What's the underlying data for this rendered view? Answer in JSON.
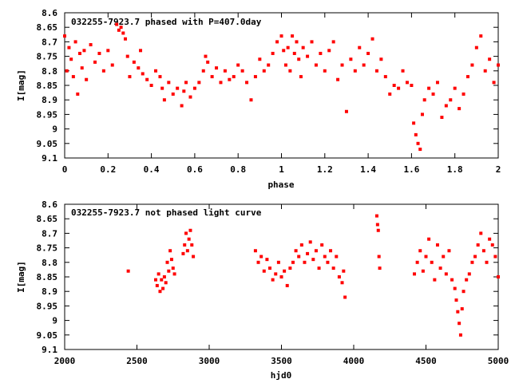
{
  "colors": {
    "points": "#ff0000",
    "axes": "#000000",
    "background": "#ffffff"
  },
  "chart_data": [
    {
      "type": "scatter",
      "title": "032255-7923.7 phased with P=407.0day",
      "xlabel": "phase",
      "ylabel": "I[mag]",
      "xlim": [
        0,
        2
      ],
      "ylim": [
        9.1,
        8.6
      ],
      "y_inverted": true,
      "grid": false,
      "xticks": [
        0,
        0.2,
        0.4,
        0.6,
        0.8,
        1,
        1.2,
        1.4,
        1.6,
        1.8,
        2
      ],
      "xtick_labels": [
        "0",
        "0.2",
        "0.4",
        "0.6",
        "0.8",
        "1",
        "1.2",
        "1.4",
        "1.6",
        "1.8",
        "2"
      ],
      "yticks": [
        8.6,
        8.65,
        8.7,
        8.75,
        8.8,
        8.85,
        8.9,
        8.95,
        9,
        9.05,
        9.1
      ],
      "ytick_labels": [
        "8.6",
        "8.65",
        "8.7",
        "8.75",
        "8.8",
        "8.85",
        "8.9",
        "8.95",
        "9",
        "9.05",
        "9.1"
      ],
      "series": [
        {
          "x": [
            0.0,
            0.01,
            0.02,
            0.03,
            0.04,
            0.05,
            0.06,
            0.07,
            0.08,
            0.09,
            0.1,
            0.12,
            0.14,
            0.16,
            0.18,
            0.2,
            0.22,
            0.24,
            0.25,
            0.26,
            0.27,
            0.28,
            0.29,
            0.3,
            0.32,
            0.34,
            0.35,
            0.36,
            0.38,
            0.4,
            0.42,
            0.44,
            0.45,
            0.46,
            0.48,
            0.5,
            0.52,
            0.54,
            0.55,
            0.56,
            0.58,
            0.6,
            0.62,
            0.64,
            0.65,
            0.66,
            0.68,
            0.7,
            0.72,
            0.74,
            0.76,
            0.78,
            0.8,
            0.82,
            0.84,
            0.86,
            0.88,
            0.9,
            0.92,
            0.94,
            0.96,
            0.98,
            1.0,
            1.01,
            1.02,
            1.03,
            1.04,
            1.05,
            1.06,
            1.07,
            1.08,
            1.09,
            1.1,
            1.12,
            1.14,
            1.16,
            1.18,
            1.2,
            1.22,
            1.24,
            1.26,
            1.28,
            1.3,
            1.32,
            1.34,
            1.36,
            1.38,
            1.4,
            1.42,
            1.44,
            1.46,
            1.48,
            1.5,
            1.52,
            1.54,
            1.56,
            1.58,
            1.6,
            1.61,
            1.62,
            1.63,
            1.64,
            1.65,
            1.66,
            1.68,
            1.7,
            1.72,
            1.74,
            1.76,
            1.78,
            1.8,
            1.82,
            1.84,
            1.86,
            1.88,
            1.9,
            1.92,
            1.94,
            1.96,
            1.98,
            2.0
          ],
          "y": [
            8.68,
            8.8,
            8.72,
            8.76,
            8.82,
            8.7,
            8.88,
            8.74,
            8.79,
            8.73,
            8.83,
            8.71,
            8.77,
            8.74,
            8.8,
            8.73,
            8.78,
            8.64,
            8.66,
            8.65,
            8.67,
            8.69,
            8.75,
            8.82,
            8.77,
            8.79,
            8.73,
            8.81,
            8.83,
            8.85,
            8.8,
            8.82,
            8.86,
            8.9,
            8.84,
            8.88,
            8.86,
            8.92,
            8.87,
            8.84,
            8.89,
            8.86,
            8.84,
            8.8,
            8.75,
            8.77,
            8.82,
            8.79,
            8.84,
            8.8,
            8.83,
            8.82,
            8.78,
            8.8,
            8.84,
            8.9,
            8.82,
            8.76,
            8.8,
            8.78,
            8.74,
            8.7,
            8.68,
            8.73,
            8.78,
            8.72,
            8.8,
            8.68,
            8.74,
            8.7,
            8.76,
            8.82,
            8.72,
            8.75,
            8.7,
            8.78,
            8.74,
            8.8,
            8.73,
            8.7,
            8.83,
            8.78,
            8.94,
            8.76,
            8.8,
            8.72,
            8.78,
            8.74,
            8.69,
            8.8,
            8.76,
            8.82,
            8.88,
            8.85,
            8.86,
            8.8,
            8.84,
            8.85,
            8.98,
            9.02,
            9.05,
            9.07,
            8.95,
            8.9,
            8.86,
            8.88,
            8.84,
            8.96,
            8.92,
            8.9,
            8.86,
            8.93,
            8.88,
            8.82,
            8.78,
            8.72,
            8.68,
            8.8,
            8.76,
            8.84,
            8.78
          ]
        }
      ]
    },
    {
      "type": "scatter",
      "title": "032255-7923.7 not phased light curve",
      "xlabel": "hjd0",
      "ylabel": "I[mag]",
      "xlim": [
        2000,
        5000
      ],
      "ylim": [
        9.1,
        8.6
      ],
      "y_inverted": true,
      "grid": false,
      "xticks": [
        2000,
        2500,
        3000,
        3500,
        4000,
        4500,
        5000
      ],
      "xtick_labels": [
        "2000",
        "2500",
        "3000",
        "3500",
        "4000",
        "4500",
        "5000"
      ],
      "yticks": [
        8.6,
        8.65,
        8.7,
        8.75,
        8.8,
        8.85,
        8.9,
        8.95,
        9,
        9.05,
        9.1
      ],
      "ytick_labels": [
        "8.6",
        "8.65",
        "8.7",
        "8.75",
        "8.8",
        "8.85",
        "8.9",
        "8.95",
        "9",
        "9.05",
        "9.1"
      ],
      "series": [
        {
          "x": [
            2440,
            2630,
            2640,
            2650,
            2660,
            2670,
            2680,
            2690,
            2700,
            2710,
            2720,
            2730,
            2740,
            2750,
            2760,
            2820,
            2830,
            2840,
            2850,
            2860,
            2870,
            2880,
            2890,
            3320,
            3340,
            3360,
            3380,
            3400,
            3420,
            3440,
            3460,
            3480,
            3500,
            3520,
            3540,
            3560,
            3580,
            3600,
            3620,
            3640,
            3660,
            3680,
            3700,
            3720,
            3740,
            3760,
            3780,
            3800,
            3820,
            3840,
            3860,
            3880,
            3900,
            3920,
            3930,
            3940,
            4160,
            4165,
            4170,
            4175,
            4180,
            4420,
            4440,
            4460,
            4480,
            4500,
            4520,
            4540,
            4560,
            4580,
            4600,
            4620,
            4640,
            4660,
            4680,
            4700,
            4710,
            4720,
            4730,
            4740,
            4750,
            4760,
            4780,
            4800,
            4820,
            4840,
            4860,
            4880,
            4900,
            4920,
            4940,
            4960,
            4980,
            5000
          ],
          "y": [
            8.83,
            8.86,
            8.88,
            8.84,
            8.9,
            8.86,
            8.89,
            8.85,
            8.87,
            8.8,
            8.83,
            8.76,
            8.79,
            8.82,
            8.84,
            8.77,
            8.74,
            8.7,
            8.76,
            8.72,
            8.69,
            8.74,
            8.78,
            8.76,
            8.8,
            8.78,
            8.83,
            8.79,
            8.82,
            8.86,
            8.84,
            8.8,
            8.85,
            8.83,
            8.88,
            8.82,
            8.8,
            8.76,
            8.78,
            8.74,
            8.8,
            8.77,
            8.73,
            8.79,
            8.76,
            8.82,
            8.74,
            8.78,
            8.8,
            8.76,
            8.82,
            8.78,
            8.85,
            8.87,
            8.83,
            8.92,
            8.64,
            8.67,
            8.69,
            8.78,
            8.82,
            8.84,
            8.8,
            8.76,
            8.83,
            8.78,
            8.72,
            8.8,
            8.86,
            8.74,
            8.82,
            8.78,
            8.84,
            8.76,
            8.86,
            8.89,
            8.93,
            8.97,
            9.01,
            9.05,
            8.96,
            8.9,
            8.86,
            8.84,
            8.8,
            8.78,
            8.74,
            8.7,
            8.76,
            8.8,
            8.72,
            8.74,
            8.78,
            8.85
          ]
        }
      ]
    }
  ]
}
